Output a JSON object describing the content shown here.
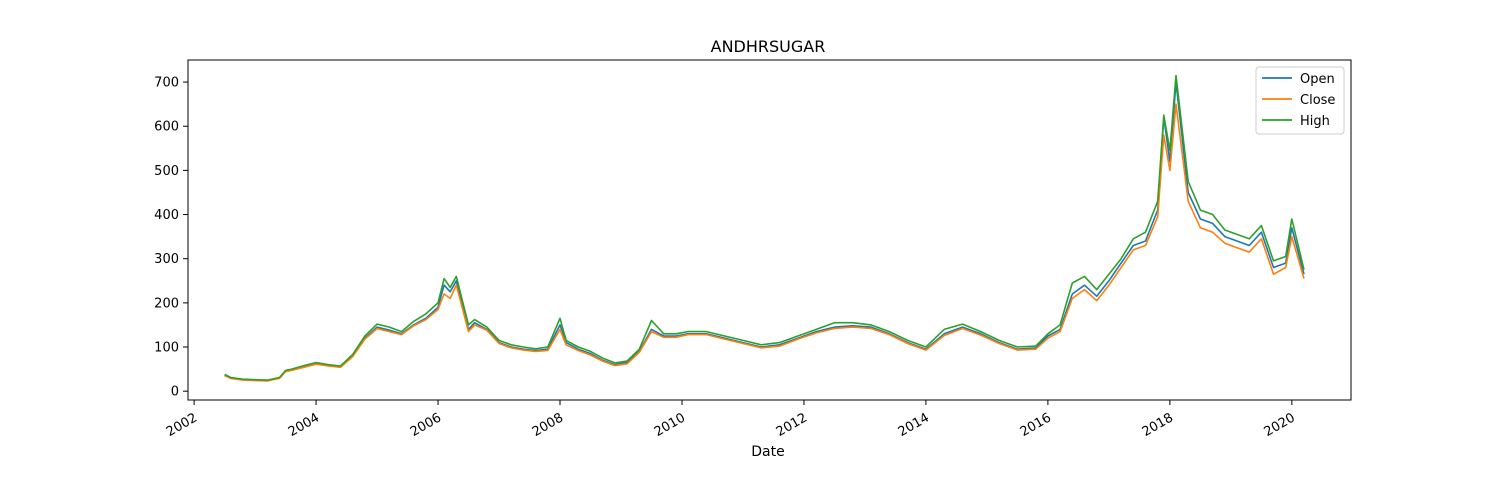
{
  "chart_data": {
    "type": "line",
    "title": "ANDHRSUGAR",
    "xlabel": "Date",
    "ylabel": "",
    "xlim": [
      2001.9,
      2020.97
    ],
    "ylim": [
      -20,
      750
    ],
    "x_ticks": [
      2002,
      2004,
      2006,
      2008,
      2010,
      2012,
      2014,
      2016,
      2018,
      2020
    ],
    "y_ticks": [
      0,
      100,
      200,
      300,
      400,
      500,
      600,
      700
    ],
    "grid": false,
    "legend_position": "top-right",
    "x": [
      2002.5,
      2002.6,
      2002.8,
      2003.0,
      2003.2,
      2003.4,
      2003.5,
      2003.6,
      2003.8,
      2004.0,
      2004.2,
      2004.4,
      2004.6,
      2004.8,
      2005.0,
      2005.2,
      2005.4,
      2005.6,
      2005.8,
      2006.0,
      2006.1,
      2006.2,
      2006.3,
      2006.5,
      2006.6,
      2006.8,
      2007.0,
      2007.2,
      2007.4,
      2007.6,
      2007.8,
      2008.0,
      2008.1,
      2008.3,
      2008.5,
      2008.7,
      2008.9,
      2009.1,
      2009.3,
      2009.5,
      2009.7,
      2009.9,
      2010.1,
      2010.4,
      2010.7,
      2011.0,
      2011.3,
      2011.6,
      2011.9,
      2012.2,
      2012.5,
      2012.8,
      2013.1,
      2013.4,
      2013.7,
      2014.0,
      2014.3,
      2014.6,
      2014.9,
      2015.2,
      2015.5,
      2015.8,
      2016.0,
      2016.2,
      2016.4,
      2016.6,
      2016.8,
      2017.0,
      2017.2,
      2017.4,
      2017.6,
      2017.8,
      2017.9,
      2018.0,
      2018.1,
      2018.3,
      2018.5,
      2018.7,
      2018.9,
      2019.1,
      2019.3,
      2019.5,
      2019.7,
      2019.9,
      2020.0,
      2020.2
    ],
    "series": [
      {
        "name": "Open",
        "color": "#1f77b4",
        "values": [
          36,
          30,
          26,
          25,
          24,
          30,
          45,
          48,
          55,
          62,
          58,
          55,
          80,
          120,
          145,
          138,
          130,
          150,
          165,
          190,
          240,
          225,
          250,
          140,
          155,
          140,
          110,
          100,
          95,
          92,
          95,
          150,
          110,
          95,
          85,
          70,
          60,
          65,
          90,
          140,
          125,
          125,
          130,
          130,
          120,
          110,
          100,
          105,
          120,
          135,
          145,
          148,
          145,
          130,
          110,
          95,
          130,
          145,
          130,
          110,
          95,
          98,
          125,
          140,
          220,
          240,
          215,
          250,
          290,
          330,
          340,
          410,
          620,
          520,
          700,
          450,
          390,
          380,
          350,
          340,
          330,
          360,
          280,
          290,
          370,
          265
        ]
      },
      {
        "name": "Close",
        "color": "#ff7f0e",
        "values": [
          35,
          29,
          25,
          24,
          23,
          29,
          44,
          47,
          54,
          61,
          57,
          54,
          78,
          118,
          142,
          135,
          128,
          148,
          162,
          185,
          220,
          210,
          240,
          135,
          150,
          138,
          108,
          98,
          93,
          90,
          92,
          140,
          105,
          92,
          82,
          68,
          58,
          62,
          88,
          135,
          122,
          122,
          128,
          128,
          118,
          108,
          98,
          102,
          118,
          132,
          142,
          145,
          142,
          128,
          108,
          93,
          126,
          142,
          127,
          108,
          93,
          95,
          120,
          135,
          210,
          230,
          205,
          240,
          280,
          320,
          330,
          395,
          580,
          500,
          650,
          430,
          370,
          360,
          335,
          325,
          315,
          345,
          265,
          280,
          350,
          255
        ]
      },
      {
        "name": "High",
        "color": "#2ca02c",
        "values": [
          38,
          31,
          27,
          26,
          25,
          31,
          47,
          50,
          58,
          65,
          60,
          57,
          83,
          125,
          152,
          145,
          135,
          158,
          175,
          200,
          255,
          235,
          260,
          150,
          162,
          145,
          115,
          105,
          100,
          96,
          100,
          165,
          115,
          100,
          90,
          75,
          64,
          68,
          95,
          160,
          130,
          130,
          135,
          135,
          125,
          115,
          105,
          110,
          125,
          140,
          155,
          155,
          150,
          135,
          115,
          100,
          140,
          152,
          135,
          115,
          100,
          102,
          130,
          150,
          245,
          260,
          230,
          265,
          300,
          345,
          360,
          430,
          625,
          545,
          715,
          475,
          410,
          400,
          365,
          355,
          345,
          375,
          295,
          305,
          390,
          275
        ]
      }
    ]
  }
}
